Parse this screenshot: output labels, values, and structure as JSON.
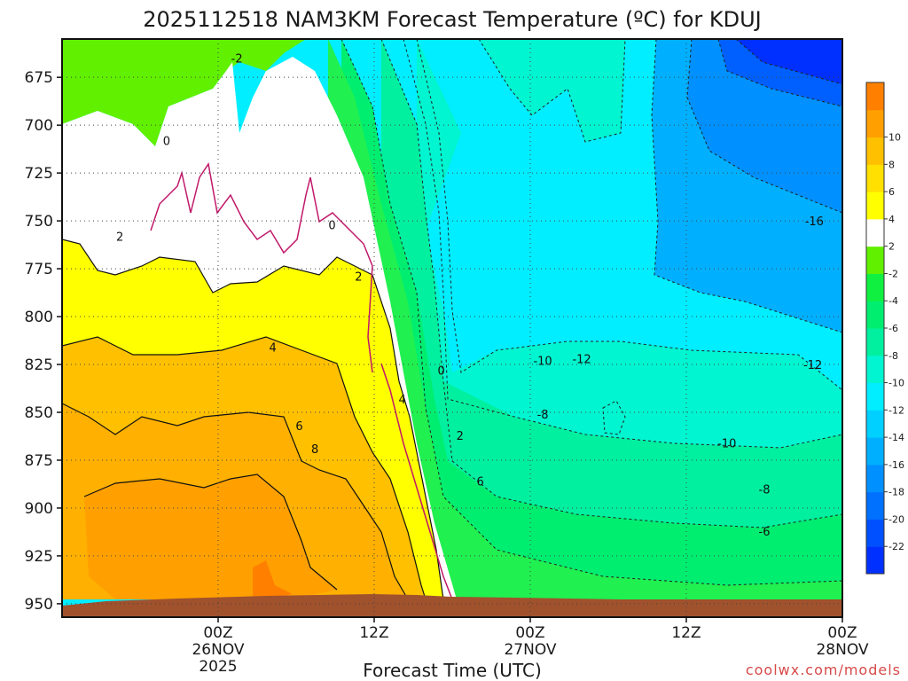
{
  "chart_data": {
    "type": "heatmap",
    "title": "2025112518 NAM3KM Forecast Temperature (ºC) for KDUJ",
    "xlabel": "Forecast Time (UTC)",
    "ylabel": "",
    "credit": "coolwx.com/models",
    "y_axis": {
      "range": [
        957,
        655
      ],
      "ticks": [
        675,
        700,
        725,
        750,
        775,
        800,
        825,
        850,
        875,
        900,
        925,
        950
      ],
      "tick_labels": [
        "675",
        "700",
        "725",
        "750",
        "775",
        "800",
        "825",
        "850",
        "875",
        "900",
        "925",
        "950"
      ]
    },
    "x_axis": {
      "range_hours": [
        -10,
        40
      ],
      "ticks": [
        {
          "hour": 0,
          "line1": "00Z",
          "line2": "26NOV",
          "line3": "2025"
        },
        {
          "hour": 10,
          "line1": "12Z",
          "line2": "",
          "line3": ""
        },
        {
          "hour": 20,
          "line1": "00Z",
          "line2": "27NOV",
          "line3": ""
        },
        {
          "hour": 30,
          "line1": "12Z",
          "line2": "",
          "line3": ""
        },
        {
          "hour": 40,
          "line1": "00Z",
          "line2": "28NOV",
          "line3": ""
        }
      ]
    },
    "colorbar": {
      "levels": [
        -24,
        -22,
        -20,
        -18,
        -16,
        -14,
        -12,
        -10,
        -8,
        -6,
        -4,
        -2,
        2,
        4,
        6,
        8,
        10,
        12
      ],
      "colors": [
        "#0030ff",
        "#0050ff",
        "#0070ff",
        "#0090ff",
        "#00b0ff",
        "#00d0ff",
        "#00eeff",
        "#00f5d0",
        "#00f0a0",
        "#00ee70",
        "#10f040",
        "#60f000",
        "#ffffff",
        "#ffff00",
        "#ffe000",
        "#ffc000",
        "#ffa000",
        "#ff8000"
      ],
      "labels": [
        "-22",
        "-20",
        "-18",
        "-16",
        "-14",
        "-12",
        "-10",
        "-8",
        "-6",
        "-4",
        "-2",
        "2",
        "4",
        "6",
        "8",
        "10"
      ]
    },
    "contour_labels": [
      {
        "text": "-2",
        "hour": 1.2,
        "pressure": 665
      },
      {
        "text": "0",
        "hour": -3.3,
        "pressure": 708
      },
      {
        "text": "0",
        "hour": 7.3,
        "pressure": 752
      },
      {
        "text": "0",
        "hour": 14.3,
        "pressure": 828
      },
      {
        "text": "2",
        "hour": -6.3,
        "pressure": 758
      },
      {
        "text": "2",
        "hour": 9.0,
        "pressure": 779
      },
      {
        "text": "2",
        "hour": 15.5,
        "pressure": 862
      },
      {
        "text": "4",
        "hour": 3.5,
        "pressure": 816
      },
      {
        "text": "4",
        "hour": 11.8,
        "pressure": 843
      },
      {
        "text": "6",
        "hour": 5.2,
        "pressure": 857
      },
      {
        "text": "6",
        "hour": 16.8,
        "pressure": 886
      },
      {
        "text": "8",
        "hour": 6.2,
        "pressure": 869
      },
      {
        "text": "-12",
        "hour": 23.3,
        "pressure": 822
      },
      {
        "text": "-10",
        "hour": 20.8,
        "pressure": 823
      },
      {
        "text": "-8",
        "hour": 20.8,
        "pressure": 851
      },
      {
        "text": "-16",
        "hour": 38.2,
        "pressure": 750
      },
      {
        "text": "-12",
        "hour": 38.1,
        "pressure": 825
      },
      {
        "text": "-10",
        "hour": 32.6,
        "pressure": 866
      },
      {
        "text": "-8",
        "hour": 35.0,
        "pressure": 890
      },
      {
        "text": "-6",
        "hour": 35.0,
        "pressure": 912
      }
    ]
  }
}
